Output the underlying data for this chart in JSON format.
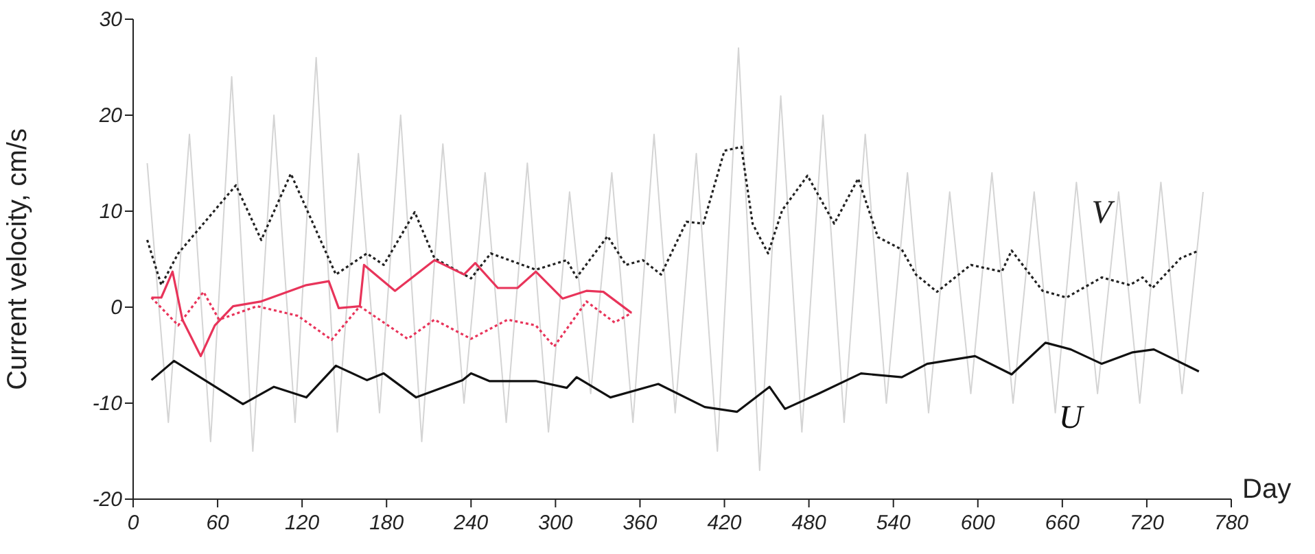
{
  "chart_data": {
    "type": "line",
    "xlabel": "Day",
    "ylabel": "Current velocity, cm/s",
    "xlim": [
      0,
      780
    ],
    "xticks": [
      0,
      60,
      120,
      180,
      240,
      300,
      360,
      420,
      480,
      540,
      600,
      660,
      720,
      780
    ],
    "ylim": [
      -20,
      30
    ],
    "yticks": [
      -20,
      -10,
      0,
      10,
      20,
      30
    ],
    "marker": "none",
    "series": [
      {
        "color": "#d4d4d4",
        "line_style": "solid",
        "x": [
          10,
          25,
          40,
          55,
          70,
          85,
          100,
          115,
          130,
          145,
          160,
          175,
          190,
          205,
          220,
          235,
          250,
          265,
          280,
          295,
          310,
          325,
          340,
          355,
          370,
          385,
          400,
          415,
          430,
          445,
          460,
          475,
          490,
          505,
          520,
          535,
          550,
          565,
          580,
          595,
          610,
          625,
          640,
          655,
          670,
          685,
          700,
          715,
          730,
          745,
          760
        ],
        "values": [
          15,
          -12,
          18,
          -14,
          24,
          -15,
          20,
          -12,
          26,
          -13,
          16,
          -11,
          20,
          -14,
          17,
          -10,
          14,
          -12,
          15,
          -13,
          12,
          -9,
          14,
          -12,
          18,
          -11,
          16,
          -15,
          27,
          -17,
          22,
          -13,
          20,
          -12,
          18,
          -10,
          14,
          -11,
          12,
          -9,
          14,
          -10,
          12,
          -11,
          13,
          -9,
          12,
          -10,
          13,
          -9,
          12
        ]
      },
      {
        "name": "V",
        "color": "#222222",
        "line_style": "dotted",
        "x": [
          10,
          20,
          32,
          73,
          91,
          112,
          144,
          166,
          178,
          200,
          214,
          240,
          254,
          286,
          308,
          315,
          337,
          350,
          362,
          375,
          393,
          405,
          420,
          432,
          440,
          451,
          461,
          479,
          498,
          515,
          529,
          546,
          556,
          571,
          595,
          617,
          624,
          646,
          663,
          688,
          708,
          717,
          724,
          744,
          757
        ],
        "values": [
          7,
          2.3,
          5.6,
          12.7,
          7,
          13.9,
          3.4,
          5.6,
          4.4,
          9.9,
          5.1,
          3,
          5.6,
          3.9,
          4.9,
          3.1,
          7.4,
          4.4,
          4.9,
          3.4,
          8.9,
          8.7,
          16.3,
          16.7,
          8.7,
          5.6,
          10.1,
          13.7,
          8.7,
          13.4,
          7.3,
          6,
          3.4,
          1.6,
          4.4,
          3.7,
          5.9,
          1.7,
          1,
          3.1,
          2.3,
          3.1,
          2,
          5.1,
          5.9
        ]
      },
      {
        "name": "U",
        "color": "#111111",
        "line_style": "solid",
        "x": [
          13,
          29,
          52,
          78,
          100,
          123,
          144,
          166,
          178,
          201,
          234,
          240,
          253,
          286,
          308,
          315,
          339,
          373,
          406,
          429,
          452,
          463,
          487,
          517,
          546,
          564,
          598,
          624,
          648,
          666,
          688,
          710,
          725,
          757
        ],
        "values": [
          -7.6,
          -5.6,
          -7.7,
          -10.1,
          -8.3,
          -9.4,
          -6.1,
          -7.6,
          -6.9,
          -9.4,
          -7.6,
          -6.9,
          -7.7,
          -7.7,
          -8.4,
          -7.3,
          -9.4,
          -8,
          -10.4,
          -10.9,
          -8.3,
          -10.6,
          -9,
          -6.9,
          -7.3,
          -5.9,
          -5.1,
          -7,
          -3.7,
          -4.4,
          -5.9,
          -4.7,
          -4.4,
          -6.7
        ]
      },
      {
        "color": "#e8345a",
        "line_style": "solid",
        "x": [
          13,
          20,
          28,
          35,
          48,
          58,
          71,
          91,
          123,
          139,
          146,
          161,
          164,
          186,
          214,
          235,
          243,
          259,
          273,
          286,
          305,
          322,
          334,
          354
        ],
        "values": [
          1,
          1,
          3.7,
          -1.3,
          -5.1,
          -1.9,
          0.1,
          0.6,
          2.3,
          2.7,
          -0.1,
          0.1,
          4.4,
          1.7,
          4.9,
          3.4,
          4.6,
          2,
          2,
          3.7,
          0.9,
          1.7,
          1.6,
          -0.6
        ]
      },
      {
        "color": "#e8345a",
        "line_style": "dotted",
        "x": [
          13,
          32,
          50,
          61,
          88,
          117,
          141,
          161,
          195,
          214,
          240,
          266,
          286,
          299,
          322,
          342,
          354
        ],
        "values": [
          1,
          -1.9,
          1.6,
          -1.3,
          0.1,
          -0.9,
          -3.4,
          0.1,
          -3.3,
          -1.3,
          -3.3,
          -1.3,
          -1.9,
          -4.1,
          0.6,
          -1.6,
          -0.6
        ]
      }
    ]
  }
}
